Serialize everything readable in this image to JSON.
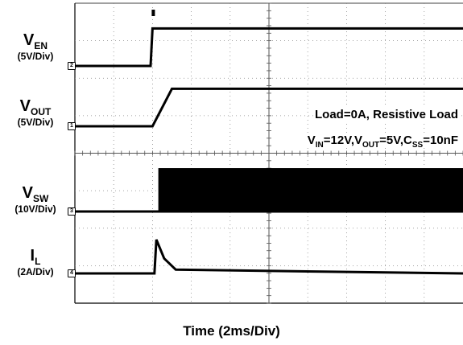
{
  "chart_data": {
    "type": "line",
    "title": "",
    "xlabel": "Time (2ms/Div)",
    "grid": true,
    "x_divisions": 10,
    "y_divisions": 8,
    "annotations": {
      "load": "Load=0A, Resistive Load",
      "cond_vin_sym": "V",
      "cond_vin_sub": "IN",
      "cond_vin_val": "=12V,",
      "cond_vout_sym": "V",
      "cond_vout_sub": "OUT",
      "cond_vout_val": "=5V,",
      "cond_css_sym": "C",
      "cond_css_sub": "SS",
      "cond_css_val": "=10nF"
    },
    "series": [
      {
        "name": "V",
        "sub": "EN",
        "scale": "(5V/Div)",
        "marker": "2",
        "x": [
          0,
          1.95,
          2.0,
          10
        ],
        "y": [
          0,
          0,
          5,
          5
        ]
      },
      {
        "name": "V",
        "sub": "OUT",
        "scale": "(5V/Div)",
        "marker": "1",
        "x": [
          0,
          2.0,
          2.5,
          10
        ],
        "y": [
          0,
          0,
          5,
          5
        ]
      },
      {
        "name": "V",
        "sub": "SW",
        "scale": "(10V/Div)",
        "marker": "3",
        "x": [
          0,
          2.15,
          10
        ],
        "y": [
          0,
          0,
          0
        ]
      },
      {
        "name": "I",
        "sub": "L",
        "scale": "(2A/Div)",
        "marker": "4",
        "x": [
          0,
          2.05,
          2.1,
          2.3,
          2.6,
          10
        ],
        "y": [
          0,
          0,
          1.8,
          0.8,
          0.2,
          0
        ]
      }
    ]
  }
}
